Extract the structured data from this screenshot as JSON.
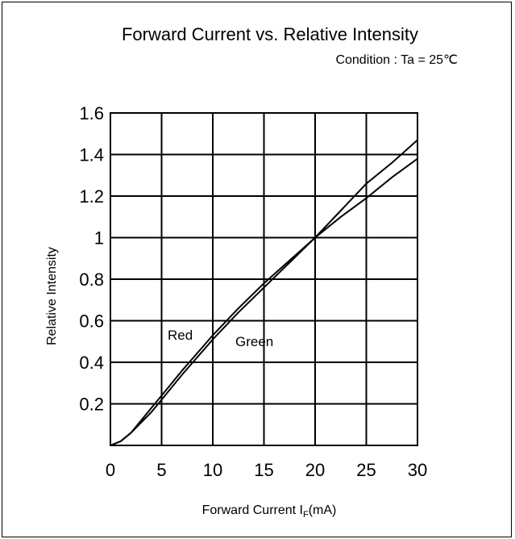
{
  "chart_data": {
    "type": "line",
    "title": "Forward Current vs. Relative Intensity",
    "subtitle": "Condition : Ta = 25℃",
    "xlabel": "Forward Current I",
    "xlabel_sub": "F",
    "xlabel_unit": "(mA)",
    "ylabel": "Relative Intensity",
    "xlim": [
      0,
      30
    ],
    "ylim": [
      0,
      1.6
    ],
    "x_ticks": [
      "0",
      "5",
      "10",
      "15",
      "20",
      "25",
      "30"
    ],
    "y_ticks": [
      "0.2",
      "0.4",
      "0.6",
      "0.8",
      "1",
      "1.2",
      "1.4",
      "1.6"
    ],
    "grid": true,
    "series": [
      {
        "name": "Red",
        "x": [
          0,
          1,
          2,
          3,
          4,
          5,
          7,
          10,
          12.5,
          15,
          17.5,
          20,
          22.5,
          25,
          27.5,
          30
        ],
        "values": [
          0,
          0.02,
          0.06,
          0.12,
          0.18,
          0.24,
          0.36,
          0.53,
          0.66,
          0.78,
          0.89,
          1.0,
          1.13,
          1.26,
          1.36,
          1.47
        ]
      },
      {
        "name": "Green",
        "x": [
          0,
          1,
          2,
          3,
          4,
          5,
          7,
          10,
          12.5,
          15,
          17.5,
          20,
          22.5,
          25,
          27.5,
          30
        ],
        "values": [
          0,
          0.02,
          0.06,
          0.11,
          0.16,
          0.22,
          0.34,
          0.51,
          0.64,
          0.76,
          0.88,
          1.0,
          1.1,
          1.19,
          1.29,
          1.38
        ]
      }
    ]
  }
}
